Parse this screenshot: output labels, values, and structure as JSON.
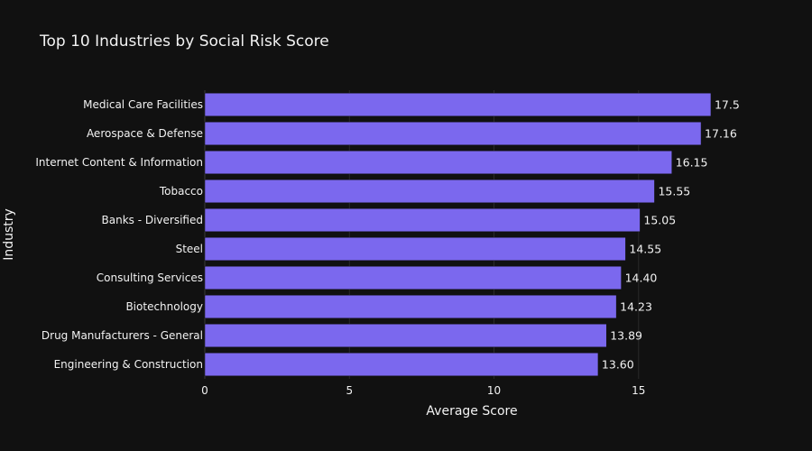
{
  "chart_data": {
    "type": "bar",
    "orientation": "horizontal",
    "title": "Top 10 Industries by Social Risk Score",
    "xlabel": "Average Score",
    "ylabel": "Industry",
    "xlim": [
      0,
      18.5
    ],
    "xticks": [
      0,
      5,
      10,
      15
    ],
    "grid": true,
    "bar_color": "#7b68ee",
    "background": "#111111",
    "categories": [
      "Medical Care Facilities",
      "Aerospace & Defense",
      "Internet Content & Information",
      "Tobacco",
      "Banks - Diversified",
      "Steel",
      "Consulting Services",
      "Biotechnology",
      "Drug Manufacturers - General",
      "Engineering & Construction"
    ],
    "values": [
      17.5,
      17.16,
      16.15,
      15.55,
      15.05,
      14.55,
      14.4,
      14.23,
      13.89,
      13.6
    ],
    "data_labels": [
      "17.5",
      "17.16",
      "16.15",
      "15.55",
      "15.05",
      "14.55",
      "14.40",
      "14.23",
      "13.89",
      "13.60"
    ]
  }
}
